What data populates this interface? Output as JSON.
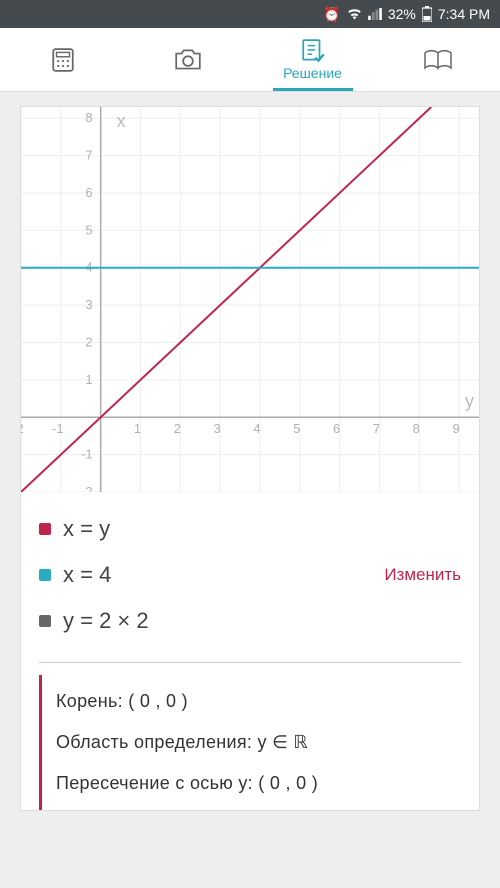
{
  "status": {
    "battery_pct": "32%",
    "time": "7:34 PM"
  },
  "tabs": {
    "active_label": "Решение"
  },
  "chart": {
    "type": "line",
    "x_axis_label": "y",
    "y_axis_label": "x",
    "xlim": [
      -2,
      9.5
    ],
    "ylim": [
      -2,
      8.3
    ],
    "xtick_step": 1,
    "ytick_step": 1,
    "background_color": "#ffffff",
    "grid_color": "#eeeeee",
    "axis_color": "#aaaaaa",
    "tick_label_color": "#b0b0b0",
    "series": [
      {
        "id": "s1",
        "color": "#c1244a",
        "type": "line",
        "points": [
          [
            -2,
            -2
          ],
          [
            8.3,
            8.3
          ]
        ],
        "stroke_width": 2
      },
      {
        "id": "s2",
        "color": "#29abc4",
        "type": "hline",
        "y": 4,
        "stroke_width": 2
      }
    ]
  },
  "legend": {
    "items": [
      {
        "color": "#c1244a",
        "label": "x = y"
      },
      {
        "color": "#29abc4",
        "label": "x = 4"
      },
      {
        "color": "#666666",
        "label": "y = 2 × 2"
      }
    ],
    "edit_label": "Изменить"
  },
  "results": {
    "lines": [
      "Корень: ( 0 , 0 )",
      "Область определения: y ∈ ℝ",
      "Пересечение с осью y: ( 0 , 0 )"
    ]
  }
}
